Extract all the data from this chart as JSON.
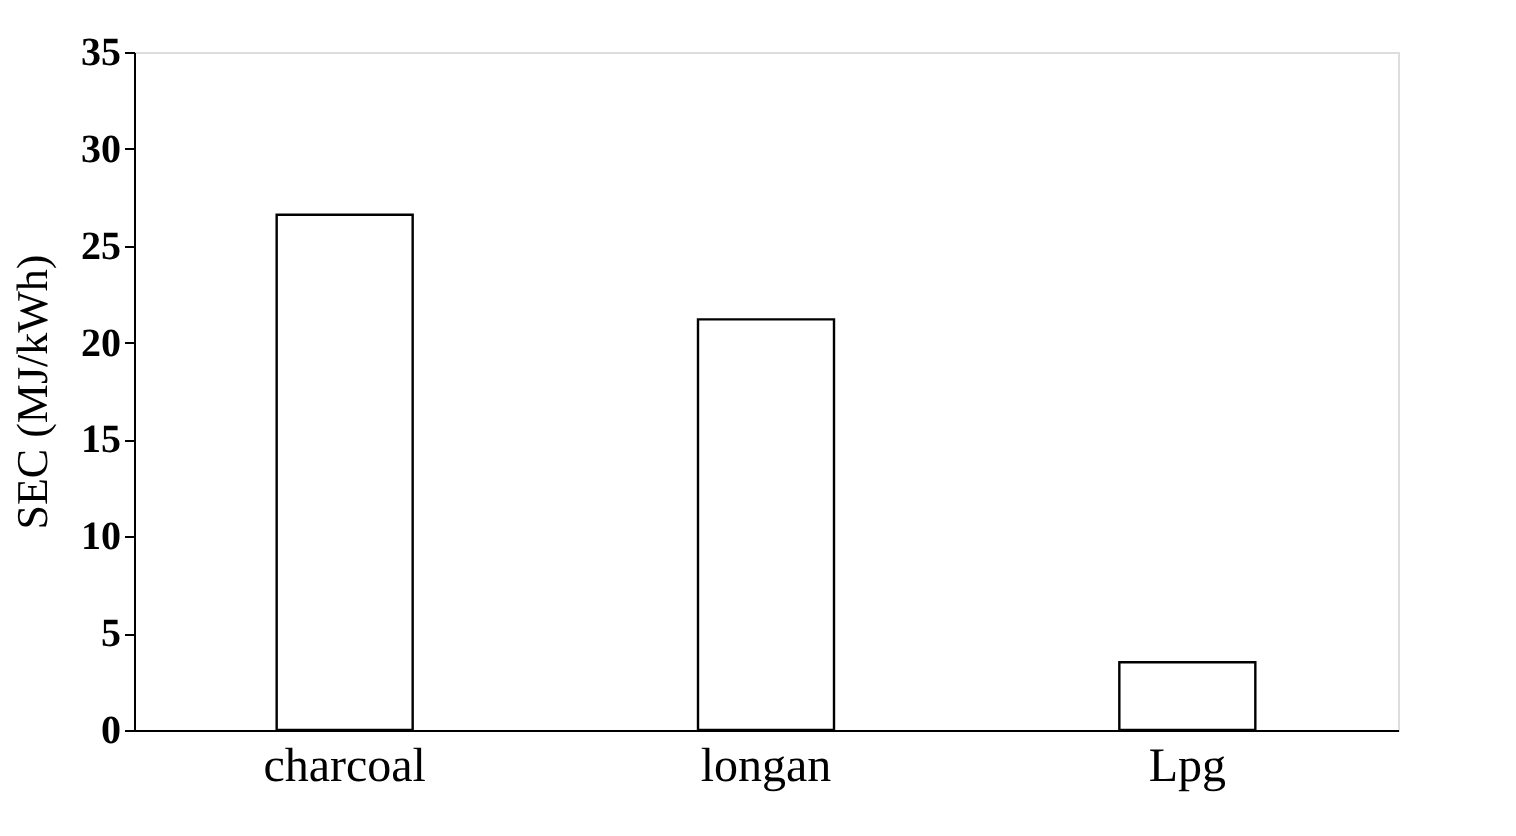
{
  "chart_data": {
    "type": "bar",
    "ylabel": "SEC (MJ/kWh)",
    "categories": [
      "charcoal",
      "longan",
      "Lpg"
    ],
    "values": [
      26.6,
      21.2,
      3.5
    ],
    "color": "#ffffff",
    "ylim": [
      0,
      35
    ],
    "yticks": [
      0,
      5,
      10,
      15,
      20,
      25,
      30,
      35
    ],
    "grid": false
  }
}
